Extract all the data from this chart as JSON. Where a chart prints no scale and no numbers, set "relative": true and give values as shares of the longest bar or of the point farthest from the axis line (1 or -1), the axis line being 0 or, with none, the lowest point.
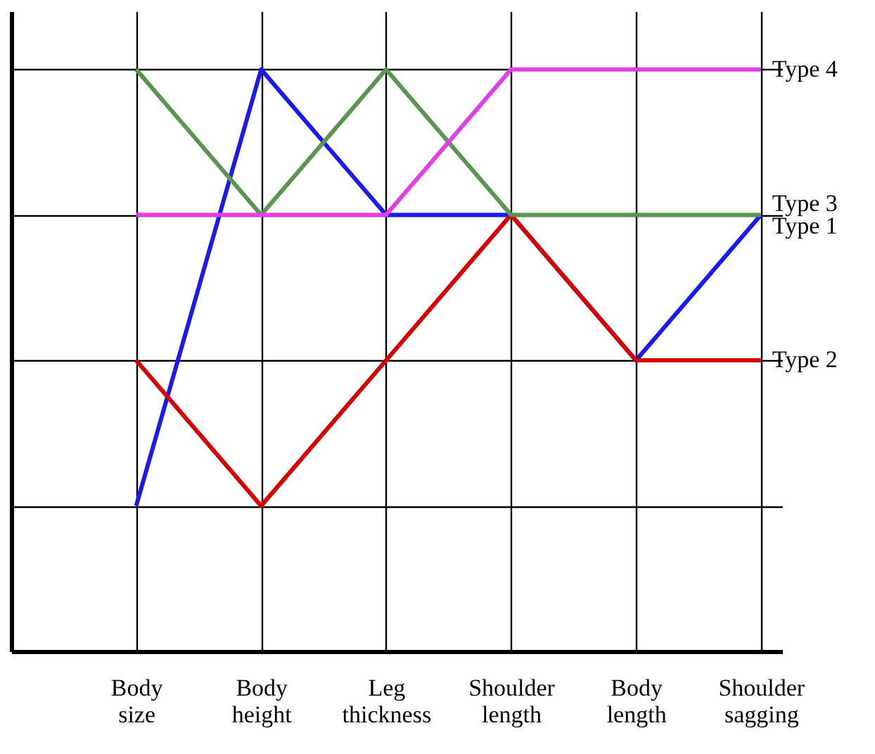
{
  "chart_data": {
    "type": "line",
    "relative": true,
    "grid": true,
    "legend": false,
    "marker": "none",
    "line_style": "solid",
    "categories": [
      "Body size",
      "Body height",
      "Leg thickness",
      "Shoulder length",
      "Body length",
      "Shoulder sagging"
    ],
    "series": [
      {
        "name": "Type 1",
        "color": "#1a1aef",
        "values": [
          0.25,
          1,
          0.75,
          0.75,
          0.5,
          0.75
        ]
      },
      {
        "name": "Type 2",
        "color": "#d60000",
        "values": [
          0.5,
          0.25,
          0.5,
          0.75,
          0.5,
          0.5
        ]
      },
      {
        "name": "Type 3",
        "color": "#5b9650",
        "values": [
          1,
          0.75,
          1,
          0.75,
          0.75,
          0.75
        ]
      },
      {
        "name": "Type 4",
        "color": "#e03fe8",
        "values": [
          0.75,
          0.75,
          0.75,
          1,
          1,
          1
        ]
      }
    ]
  }
}
